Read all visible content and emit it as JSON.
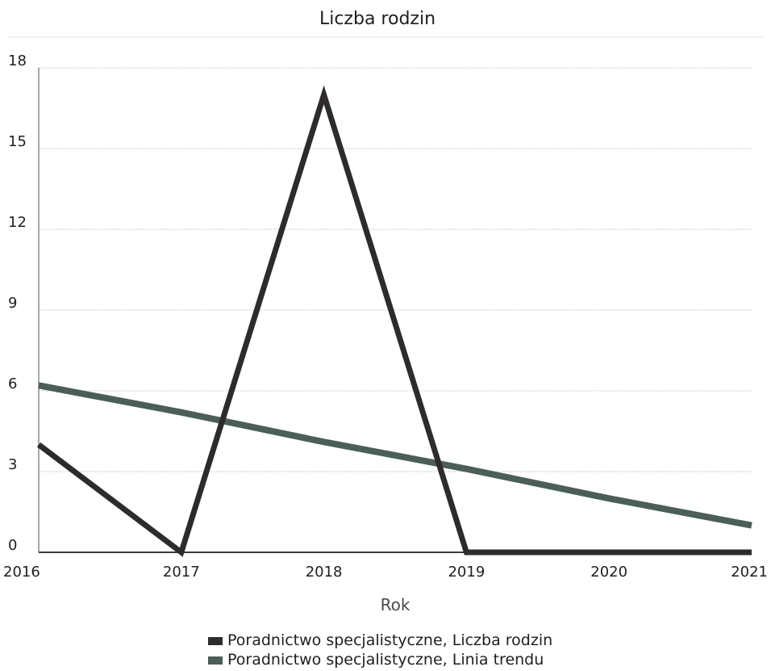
{
  "chart_data": {
    "type": "line",
    "title": "Liczba rodzin",
    "xlabel": "Rok",
    "ylabel": "",
    "x": [
      2016,
      2017,
      2018,
      2019,
      2020,
      2021
    ],
    "xlim": [
      2016,
      2021
    ],
    "ylim": [
      0,
      18
    ],
    "yticks": [
      0,
      3,
      6,
      9,
      12,
      15,
      18
    ],
    "xticks": [
      "2016",
      "2017",
      "2018",
      "2019",
      "2020",
      "2021"
    ],
    "grid": true,
    "legend_position": "bottom",
    "series": [
      {
        "name": "Poradnictwo specjalistyczne, Liczba rodzin",
        "color": "#2e2b2c",
        "values": [
          4,
          0,
          17,
          0,
          0,
          0
        ]
      },
      {
        "name": "Poradnictwo specjalistyczne, Linia trendu",
        "color": "#4b5e57",
        "values": [
          6.2,
          5.2,
          4.1,
          3.1,
          2.0,
          1.0
        ]
      }
    ]
  }
}
